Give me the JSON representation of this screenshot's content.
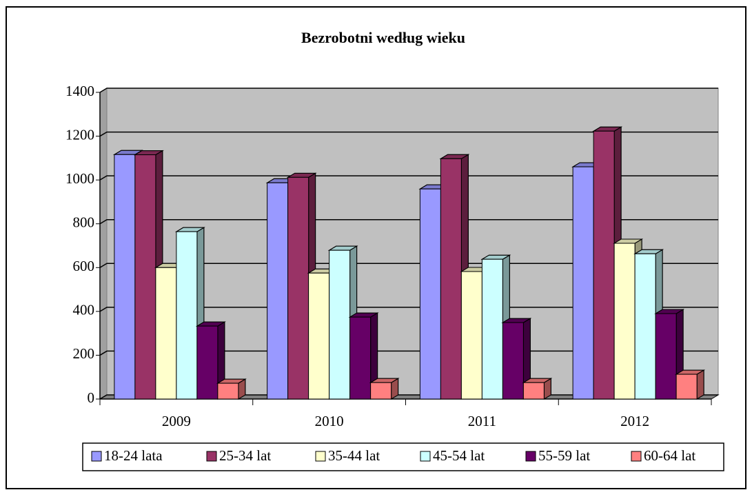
{
  "chart_data": {
    "type": "bar3d",
    "title": "Bezrobotni według wieku",
    "categories": [
      "2009",
      "2010",
      "2011",
      "2012"
    ],
    "series": [
      {
        "name": "18-24 lata",
        "color": "#9999ff",
        "values": [
          1116,
          987,
          959,
          1060
        ]
      },
      {
        "name": "25-34 lat",
        "color": "#993366",
        "values": [
          1115,
          1012,
          1097,
          1223
        ]
      },
      {
        "name": "35-44 lat",
        "color": "#ffffcc",
        "values": [
          600,
          575,
          582,
          711
        ]
      },
      {
        "name": "45-54 lat",
        "color": "#ccffff",
        "values": [
          764,
          679,
          638,
          663
        ]
      },
      {
        "name": "55-59 lat",
        "color": "#660066",
        "values": [
          333,
          374,
          349,
          390
        ]
      },
      {
        "name": "60-64 lat",
        "color": "#ff8080",
        "values": [
          72,
          75,
          75,
          113
        ]
      }
    ],
    "ylim": [
      0,
      1400
    ],
    "yticks": [
      0,
      200,
      400,
      600,
      800,
      1000,
      1200,
      1400
    ],
    "grid": true,
    "legend": "bottom"
  }
}
